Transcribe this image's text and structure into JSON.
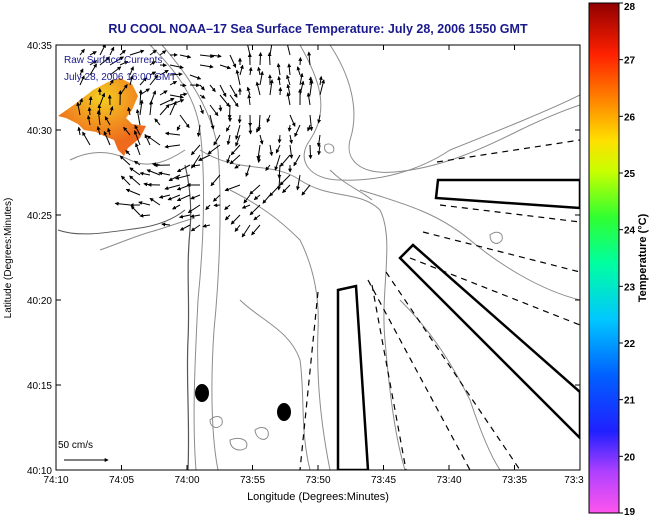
{
  "title": "RU COOL  NOAA–17  Sea Surface Temperature:  July 28, 2006 1550 GMT",
  "legend_lines": [
    "Raw Surface Currents",
    "July 28, 2006 16:00 GMT"
  ],
  "scale_label": "50 cm/s",
  "xlabel": "Longitude (Degrees:Minutes)",
  "ylabel": "Latitude (Degrees:Minutes)",
  "x_ticks": [
    "74:10",
    "74:05",
    "74:00",
    "73:55",
    "73:50",
    "73:45",
    "73:40",
    "73:35",
    "73:3"
  ],
  "y_ticks": [
    "40:35",
    "40:30",
    "40:25",
    "40:20",
    "40:15",
    "40:10"
  ],
  "colorbar": {
    "label": "Temperature (°C)",
    "ticks": [
      "28",
      "27",
      "26",
      "25",
      "24",
      "23",
      "22",
      "21",
      "20",
      "19"
    ],
    "min": 19,
    "max": 28
  },
  "colors": {
    "title": "#1a1a8c",
    "legend_text": "#1a1a8c",
    "sst_patch": "#f07a1e",
    "sst_warm_core": "#f4d020",
    "contour": "#8c8c8c",
    "outline": "#000000"
  }
}
